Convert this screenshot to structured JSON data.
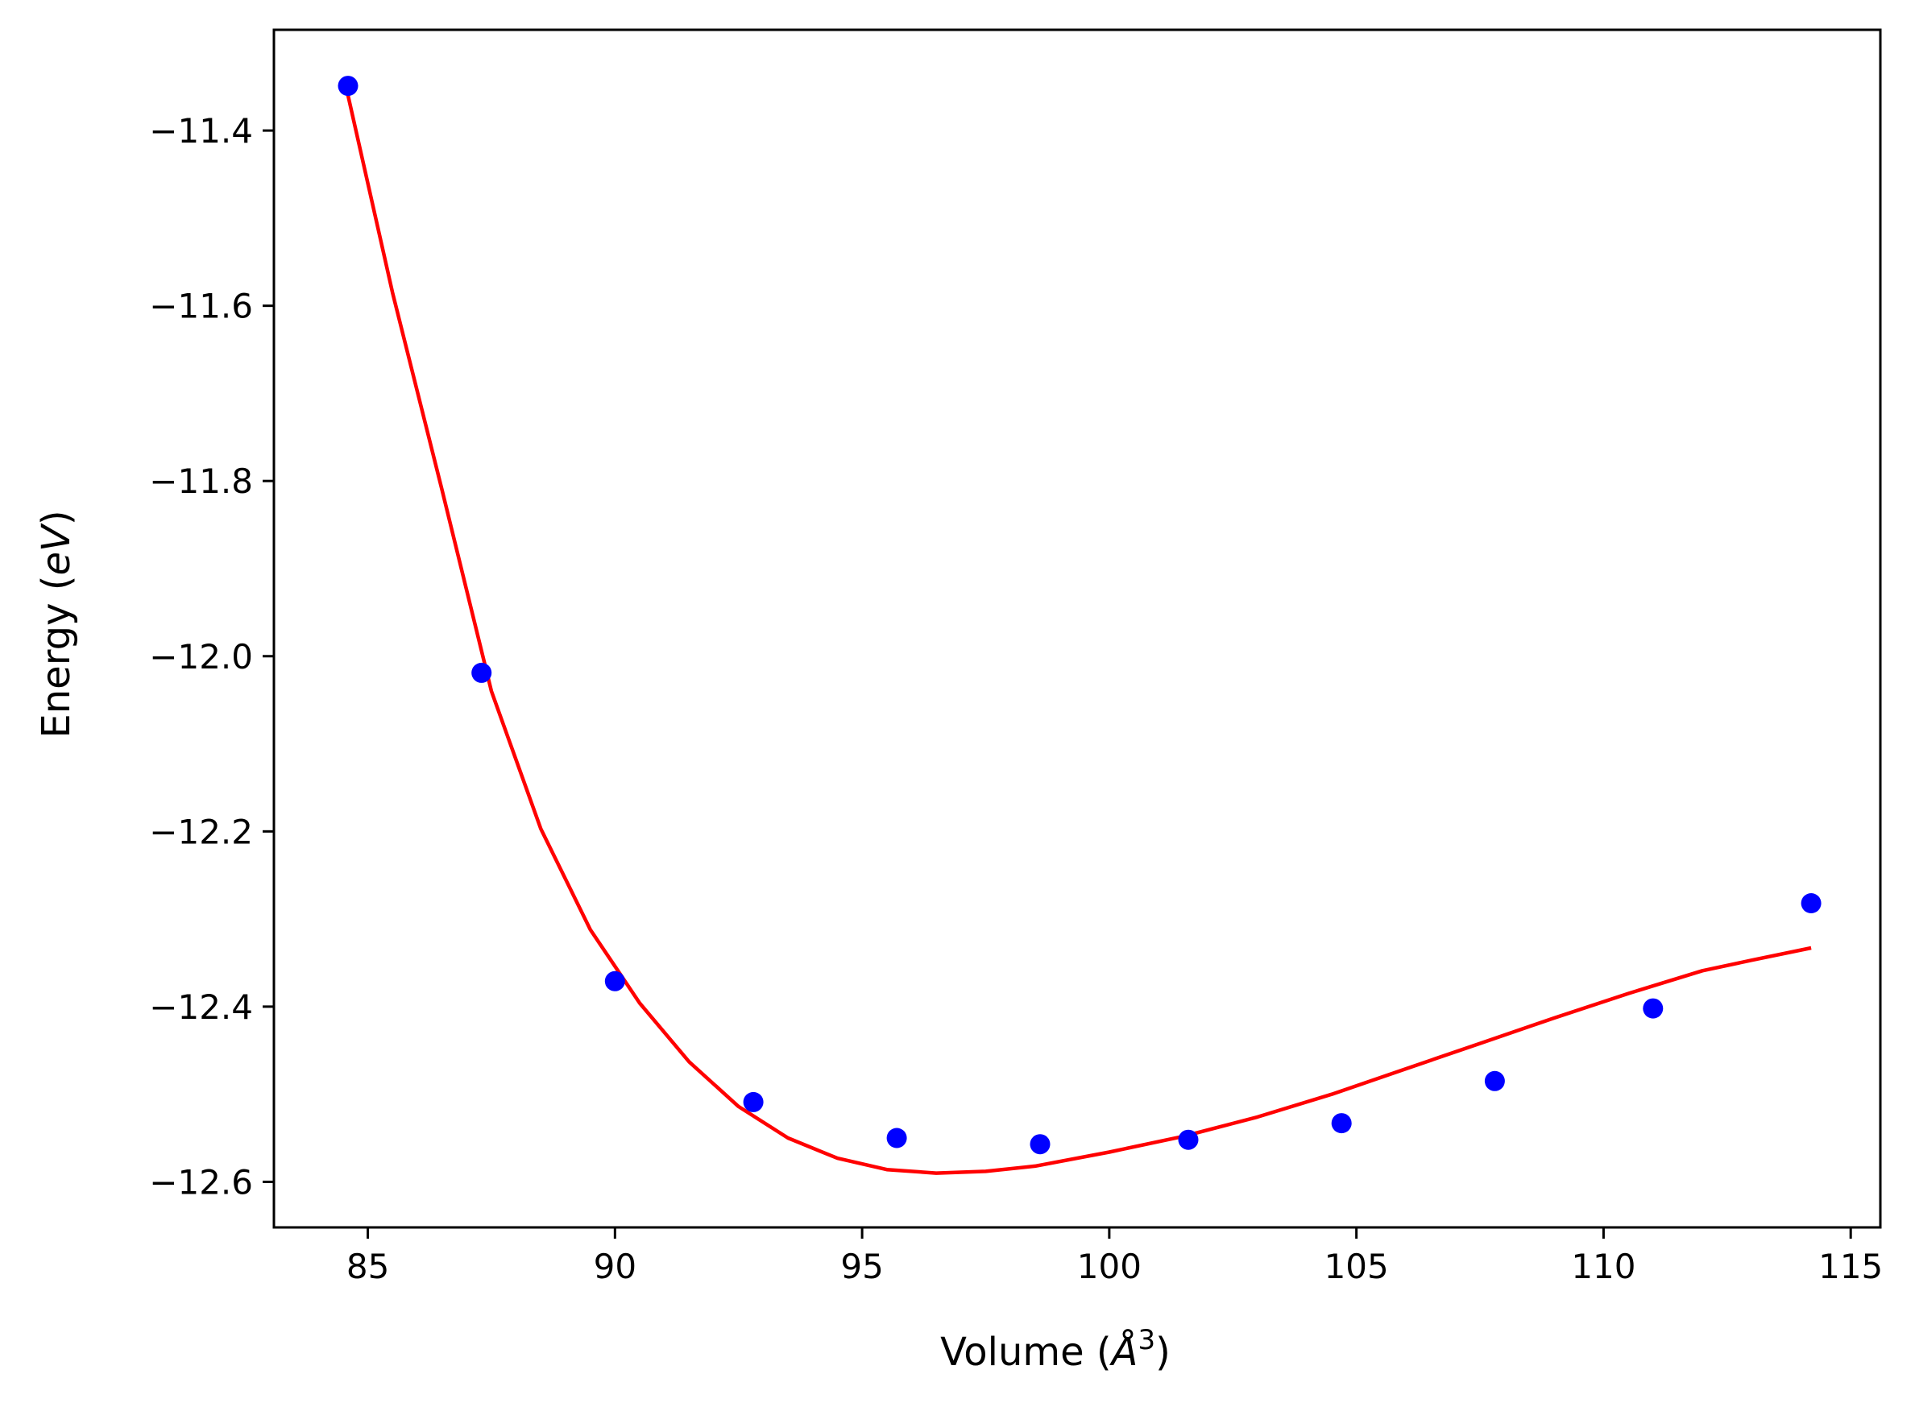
{
  "chart_data": {
    "type": "scatter",
    "title": "",
    "xlabel": "Volume (Å³)",
    "xlabel_parts": {
      "text": "Volume (",
      "unit": "Å",
      "exp": "3",
      "close": ")"
    },
    "ylabel": "Energy (eV)",
    "ylabel_parts": {
      "text": "Energy (",
      "unit": "eV",
      "close": ")"
    },
    "xlim": [
      83.1,
      115.6
    ],
    "ylim": [
      -12.652,
      -11.285
    ],
    "xticks": [
      85,
      90,
      95,
      100,
      105,
      110,
      115
    ],
    "xtick_labels": [
      "85",
      "90",
      "95",
      "100",
      "105",
      "110",
      "115"
    ],
    "yticks": [
      -11.4,
      -11.6,
      -11.8,
      -12.0,
      -12.2,
      -12.4,
      -12.6
    ],
    "ytick_labels": [
      "−11.4",
      "−11.6",
      "−11.8",
      "−12.0",
      "−12.2",
      "−12.4",
      "−12.6"
    ],
    "grid": false,
    "series": [
      {
        "kind": "scatter",
        "color": "#0000ff",
        "x": [
          84.6,
          87.3,
          90.0,
          92.8,
          95.7,
          98.6,
          101.6,
          104.7,
          107.8,
          111.0,
          114.2
        ],
        "y": [
          -11.349,
          -12.019,
          -12.371,
          -12.509,
          -12.55,
          -12.557,
          -12.552,
          -12.533,
          -12.485,
          -12.402,
          -12.282
        ]
      },
      {
        "kind": "line",
        "color": "#ff0000",
        "x": [
          84.6,
          85.5,
          86.5,
          87.5,
          88.5,
          89.5,
          90.5,
          91.5,
          92.5,
          93.5,
          94.5,
          95.5,
          96.5,
          97.5,
          98.5,
          100.0,
          101.5,
          103.0,
          104.5,
          106.0,
          107.5,
          109.0,
          110.5,
          112.0,
          113.0,
          114.2
        ],
        "y": [
          -11.36,
          -11.585,
          -11.81,
          -12.04,
          -12.197,
          -12.312,
          -12.396,
          -12.463,
          -12.514,
          -12.55,
          -12.573,
          -12.586,
          -12.59,
          -12.588,
          -12.582,
          -12.566,
          -12.548,
          -12.526,
          -12.5,
          -12.471,
          -12.442,
          -12.413,
          -12.385,
          -12.359,
          -12.347,
          -12.333
        ]
      }
    ],
    "colors": {
      "axes": "#000000",
      "background": "#ffffff"
    }
  }
}
